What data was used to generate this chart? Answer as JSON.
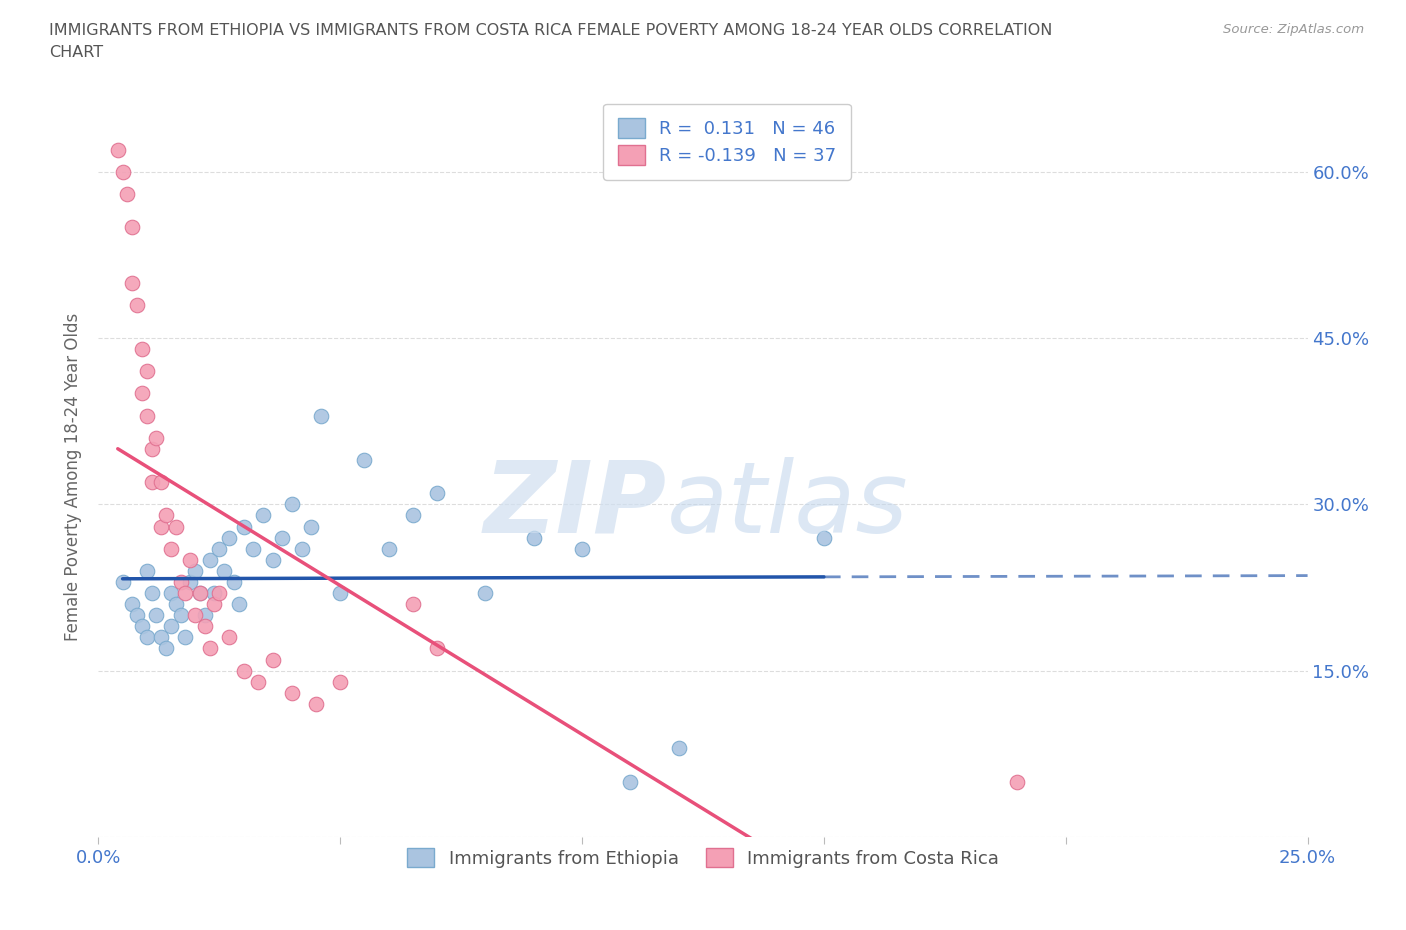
{
  "title": "IMMIGRANTS FROM ETHIOPIA VS IMMIGRANTS FROM COSTA RICA FEMALE POVERTY AMONG 18-24 YEAR OLDS CORRELATION\nCHART",
  "source_text": "Source: ZipAtlas.com",
  "ylabel": "Female Poverty Among 18-24 Year Olds",
  "xlim": [
    0.0,
    0.25
  ],
  "ylim": [
    0.0,
    0.65
  ],
  "ethiopia_color": "#aac4e0",
  "ethiopia_edge_color": "#7aaace",
  "costa_rica_color": "#f4a0b5",
  "costa_rica_edge_color": "#e07090",
  "ethiopia_line_color": "#2255aa",
  "costa_rica_line_color": "#e8507a",
  "R_ethiopia": 0.131,
  "N_ethiopia": 46,
  "R_costa_rica": -0.139,
  "N_costa_rica": 37,
  "legend_label_ethiopia": "Immigrants from Ethiopia",
  "legend_label_costa_rica": "Immigrants from Costa Rica",
  "ethiopia_x": [
    0.005,
    0.007,
    0.008,
    0.009,
    0.01,
    0.01,
    0.011,
    0.012,
    0.013,
    0.014,
    0.015,
    0.015,
    0.016,
    0.017,
    0.018,
    0.019,
    0.02,
    0.021,
    0.022,
    0.023,
    0.024,
    0.025,
    0.026,
    0.027,
    0.028,
    0.029,
    0.03,
    0.032,
    0.034,
    0.036,
    0.038,
    0.04,
    0.042,
    0.044,
    0.046,
    0.05,
    0.055,
    0.06,
    0.065,
    0.07,
    0.08,
    0.09,
    0.1,
    0.11,
    0.12,
    0.15
  ],
  "ethiopia_y": [
    0.23,
    0.21,
    0.2,
    0.19,
    0.24,
    0.18,
    0.22,
    0.2,
    0.18,
    0.17,
    0.22,
    0.19,
    0.21,
    0.2,
    0.18,
    0.23,
    0.24,
    0.22,
    0.2,
    0.25,
    0.22,
    0.26,
    0.24,
    0.27,
    0.23,
    0.21,
    0.28,
    0.26,
    0.29,
    0.25,
    0.27,
    0.3,
    0.26,
    0.28,
    0.38,
    0.22,
    0.34,
    0.26,
    0.29,
    0.31,
    0.22,
    0.27,
    0.26,
    0.05,
    0.08,
    0.27
  ],
  "costa_rica_x": [
    0.004,
    0.005,
    0.006,
    0.007,
    0.007,
    0.008,
    0.009,
    0.009,
    0.01,
    0.01,
    0.011,
    0.011,
    0.012,
    0.013,
    0.013,
    0.014,
    0.015,
    0.016,
    0.017,
    0.018,
    0.019,
    0.02,
    0.021,
    0.022,
    0.023,
    0.024,
    0.025,
    0.027,
    0.03,
    0.033,
    0.036,
    0.04,
    0.045,
    0.05,
    0.065,
    0.07,
    0.19
  ],
  "costa_rica_y": [
    0.62,
    0.6,
    0.58,
    0.55,
    0.5,
    0.48,
    0.44,
    0.4,
    0.42,
    0.38,
    0.35,
    0.32,
    0.36,
    0.32,
    0.28,
    0.29,
    0.26,
    0.28,
    0.23,
    0.22,
    0.25,
    0.2,
    0.22,
    0.19,
    0.17,
    0.21,
    0.22,
    0.18,
    0.15,
    0.14,
    0.16,
    0.13,
    0.12,
    0.14,
    0.21,
    0.17,
    0.05
  ],
  "watermark_zip_color": "#d0dff0",
  "watermark_atlas_color": "#c0d5ec",
  "background_color": "#ffffff",
  "grid_color": "#dddddd",
  "title_color": "#555555",
  "tick_label_color": "#4477cc"
}
